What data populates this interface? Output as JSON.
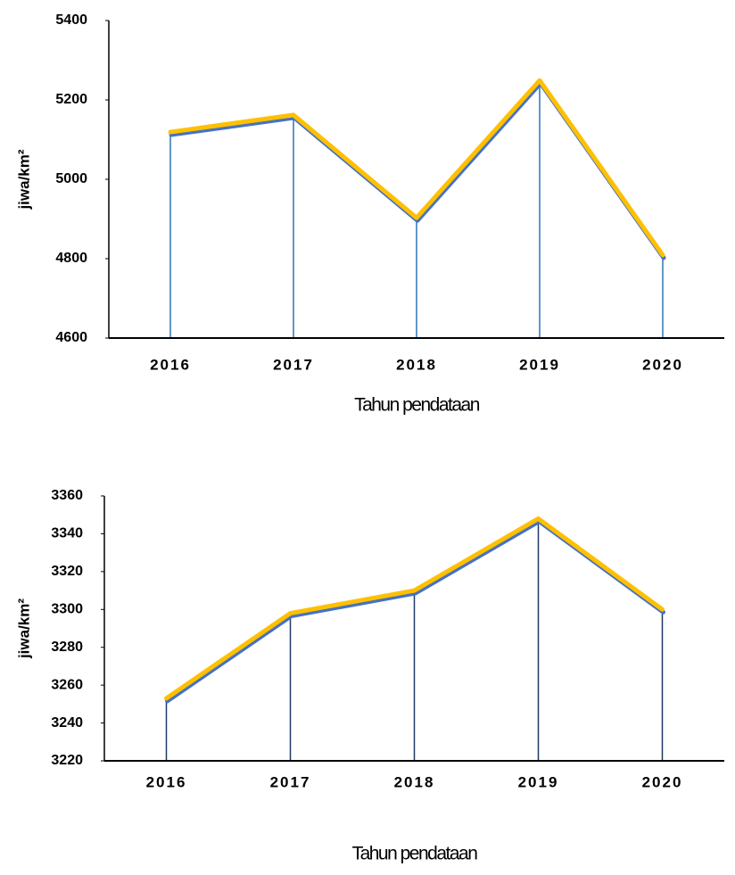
{
  "chart_data": [
    {
      "type": "line",
      "x_label": "Tahun pendataan",
      "y_label": "jiwa/km²",
      "categories": [
        "2016",
        "2017",
        "2018",
        "2019",
        "2020"
      ],
      "series": [
        {
          "color": "#ffc000",
          "shadow_color": "#4472c4",
          "values": [
            5119,
            5162,
            4903,
            5249,
            4809
          ]
        }
      ],
      "drop_line_color": "#2e75b6",
      "ylim": [
        4600,
        5400
      ],
      "yticks": [
        4600,
        4800,
        5000,
        5200,
        5400
      ]
    },
    {
      "type": "line",
      "x_label": "Tahun pendataan",
      "y_label": "jiwa/km²",
      "categories": [
        "2016",
        "2017",
        "2018",
        "2019",
        "2020"
      ],
      "series": [
        {
          "color": "#ffc000",
          "shadow_color": "#4472c4",
          "values": [
            3253,
            3298,
            3310,
            3348,
            3300
          ]
        }
      ],
      "drop_line_color": "#1f3864",
      "ylim": [
        3220,
        3360
      ],
      "yticks": [
        3220,
        3240,
        3260,
        3280,
        3300,
        3320,
        3340,
        3360
      ]
    }
  ]
}
